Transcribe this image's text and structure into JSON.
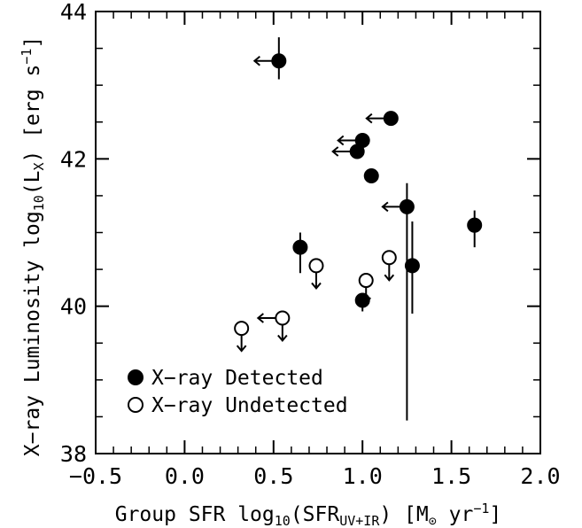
{
  "chart_data": {
    "type": "scatter",
    "xlabel": {
      "prefix": "Group SFR log",
      "sub1": "10",
      "mid": "(SFR",
      "sub2": "UV+IR",
      "unit_open": ") [M",
      "sun_symbol": "⊙",
      "unit_yr": " yr",
      "unit_exp": "−1",
      "unit_close": "]"
    },
    "ylabel": {
      "prefix": "X−ray Luminosity log",
      "sub1": "10",
      "mid": "(L",
      "sub2": "X",
      "unit_open": ") [erg s",
      "unit_exp": "−1",
      "unit_close": "]"
    },
    "xlim": [
      -0.5,
      2.0
    ],
    "ylim": [
      38,
      44
    ],
    "xticks": [
      -0.5,
      0.0,
      0.5,
      1.0,
      1.5,
      2.0
    ],
    "xtick_labels": [
      "−0.5",
      "0.0",
      "0.5",
      "1.0",
      "1.5",
      "2.0"
    ],
    "yticks": [
      38,
      40,
      42,
      44
    ],
    "ytick_labels": [
      "38",
      "40",
      "42",
      "44"
    ],
    "grid": false,
    "legend_position": "bottom-left",
    "series": [
      {
        "name": "X−ray Detected",
        "marker": "filled-circle",
        "points": [
          {
            "x": 0.53,
            "y": 43.33,
            "err_lo": 0.25,
            "err_hi": 0.32,
            "xlimit": true
          },
          {
            "x": 1.16,
            "y": 42.55,
            "xlimit": true
          },
          {
            "x": 1.0,
            "y": 42.25,
            "xlimit": true
          },
          {
            "x": 0.97,
            "y": 42.1,
            "xlimit": true
          },
          {
            "x": 1.05,
            "y": 41.77
          },
          {
            "x": 1.25,
            "y": 41.35,
            "err_lo": 2.9,
            "err_hi": 0.32,
            "xlimit": true
          },
          {
            "x": 1.63,
            "y": 41.1,
            "err_lo": 0.3,
            "err_hi": 0.2
          },
          {
            "x": 0.65,
            "y": 40.8,
            "err_lo": 0.35,
            "err_hi": 0.2
          },
          {
            "x": 1.28,
            "y": 40.55,
            "err_lo": 0.65,
            "err_hi": 0.6
          },
          {
            "x": 1.0,
            "y": 40.08,
            "err_lo": 0.15,
            "err_hi": 0.1
          }
        ]
      },
      {
        "name": "X−ray Undetected",
        "marker": "open-circle",
        "points": [
          {
            "x": 0.74,
            "y": 40.55,
            "ylimit": true
          },
          {
            "x": 1.15,
            "y": 40.66,
            "ylimit": true
          },
          {
            "x": 1.02,
            "y": 40.35,
            "ylimit": true
          },
          {
            "x": 0.55,
            "y": 39.84,
            "ylimit": true,
            "xlimit": true
          },
          {
            "x": 0.32,
            "y": 39.7,
            "ylimit": true
          }
        ]
      }
    ]
  },
  "colors": {
    "foreground": "#000000",
    "background": "#ffffff"
  }
}
